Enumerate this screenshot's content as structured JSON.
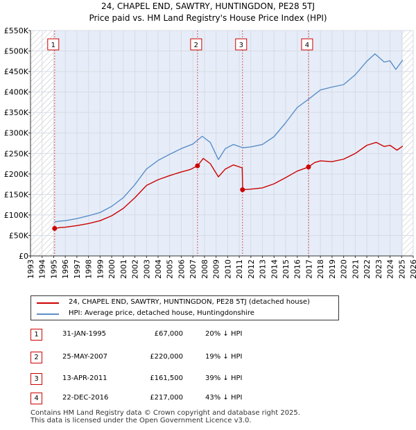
{
  "title": {
    "line1": "24, CHAPEL END, SAWTRY, HUNTINGDON, PE28 5TJ",
    "line2": "Price paid vs. HM Land Registry's House Price Index (HPI)"
  },
  "colors": {
    "property": "#cc0000",
    "hpi": "#5b8ec8",
    "shade": "#e6edf8",
    "hatch": "#bbbbbb",
    "grid": "#d6dce6",
    "vline": "#dd5555"
  },
  "chart_data": {
    "type": "line",
    "title": "Price paid vs. HM Land Registry's House Price Index (HPI)",
    "xlabel": "",
    "ylabel": "",
    "xlim": [
      1993,
      2026
    ],
    "ylim": [
      0,
      550000
    ],
    "y_ticks": [
      0,
      50000,
      100000,
      150000,
      200000,
      250000,
      300000,
      350000,
      400000,
      450000,
      500000,
      550000
    ],
    "y_tick_labels": [
      "£0",
      "£50K",
      "£100K",
      "£150K",
      "£200K",
      "£250K",
      "£300K",
      "£350K",
      "£400K",
      "£450K",
      "£500K",
      "£550K"
    ],
    "x_ticks": [
      1993,
      1994,
      1995,
      1996,
      1997,
      1998,
      1999,
      2000,
      2001,
      2002,
      2003,
      2004,
      2005,
      2006,
      2007,
      2008,
      2009,
      2010,
      2011,
      2012,
      2013,
      2014,
      2015,
      2016,
      2017,
      2018,
      2019,
      2020,
      2021,
      2022,
      2023,
      2024,
      2025,
      2026
    ],
    "x_tick_labels": [
      "1993",
      "1994",
      "1995",
      "1996",
      "1997",
      "1998",
      "1999",
      "2000",
      "2001",
      "2002",
      "2003",
      "2004",
      "2005",
      "2006",
      "2007",
      "2008",
      "2009",
      "2010",
      "2011",
      "2012",
      "2013",
      "2014",
      "2015",
      "2016",
      "2017",
      "2018",
      "2019",
      "2020",
      "2021",
      "2022",
      "2023",
      "2024",
      "2025",
      "2026"
    ],
    "hatch_ranges": [
      [
        1993,
        1995.08
      ],
      [
        2025.1,
        2026
      ]
    ],
    "shaded_range": [
      1995.08,
      2025.1
    ],
    "series": [
      {
        "name": "24, CHAPEL END, SAWTRY, HUNTINGDON, PE28 5TJ (detached house)",
        "x": [
          1995.08,
          1995.5,
          1996,
          1997,
          1998,
          1999,
          2000,
          2001,
          2002,
          2003,
          2004,
          2005,
          2006,
          2006.8,
          2007.4,
          2007.9,
          2008.5,
          2009.2,
          2009.8,
          2010.5,
          2011.25,
          2011.3,
          2012,
          2013,
          2014,
          2015,
          2016,
          2016.97,
          2017.5,
          2018,
          2019,
          2020,
          2021,
          2022,
          2022.8,
          2023.5,
          2024,
          2024.6,
          2025.1
        ],
        "values": [
          67000,
          69000,
          70000,
          74000,
          79000,
          86000,
          98000,
          116000,
          142000,
          172000,
          186000,
          196000,
          205000,
          211000,
          220000,
          238000,
          225000,
          193000,
          212000,
          222000,
          215000,
          161500,
          163000,
          166000,
          176000,
          191000,
          207000,
          217000,
          228000,
          232000,
          230000,
          236000,
          250000,
          270000,
          277000,
          267000,
          270000,
          258000,
          268000
        ]
      },
      {
        "name": "HPI: Average price, detached house, Huntingdonshire",
        "x": [
          1995.08,
          1995.5,
          1996,
          1997,
          1998,
          1999,
          2000,
          2001,
          2002,
          2003,
          2004,
          2005,
          2006,
          2007,
          2007.8,
          2008.5,
          2009.2,
          2009.8,
          2010.5,
          2011.3,
          2012,
          2013,
          2014,
          2015,
          2016,
          2017,
          2018,
          2019,
          2020,
          2021,
          2022,
          2022.7,
          2023.5,
          2024,
          2024.5,
          2025.1
        ],
        "values": [
          83000,
          85000,
          86000,
          91000,
          98000,
          106000,
          121000,
          142000,
          174000,
          212000,
          233000,
          248000,
          262000,
          273000,
          292000,
          277000,
          235000,
          262000,
          272000,
          264000,
          266000,
          272000,
          291000,
          325000,
          362000,
          383000,
          405000,
          412000,
          418000,
          442000,
          475000,
          493000,
          473000,
          476000,
          455000,
          478000
        ]
      }
    ],
    "markers": [
      {
        "label": "1",
        "x": 1995.08,
        "value": 67000
      },
      {
        "label": "2",
        "x": 2007.4,
        "value": 220000
      },
      {
        "label": "3",
        "x": 2011.28,
        "value": 161500
      },
      {
        "label": "4",
        "x": 2016.97,
        "value": 217000
      }
    ]
  },
  "legend": {
    "property": "24, CHAPEL END, SAWTRY, HUNTINGDON, PE28 5TJ (detached house)",
    "hpi": "HPI: Average price, detached house, Huntingdonshire"
  },
  "transactions": [
    {
      "num": "1",
      "date": "31-JAN-1995",
      "price": "£67,000",
      "hpi": "20% ↓ HPI"
    },
    {
      "num": "2",
      "date": "25-MAY-2007",
      "price": "£220,000",
      "hpi": "19% ↓ HPI"
    },
    {
      "num": "3",
      "date": "13-APR-2011",
      "price": "£161,500",
      "hpi": "39% ↓ HPI"
    },
    {
      "num": "4",
      "date": "22-DEC-2016",
      "price": "£217,000",
      "hpi": "43% ↓ HPI"
    }
  ],
  "footer": {
    "line1": "Contains HM Land Registry data © Crown copyright and database right 2025.",
    "line2": "This data is licensed under the Open Government Licence v3.0."
  }
}
